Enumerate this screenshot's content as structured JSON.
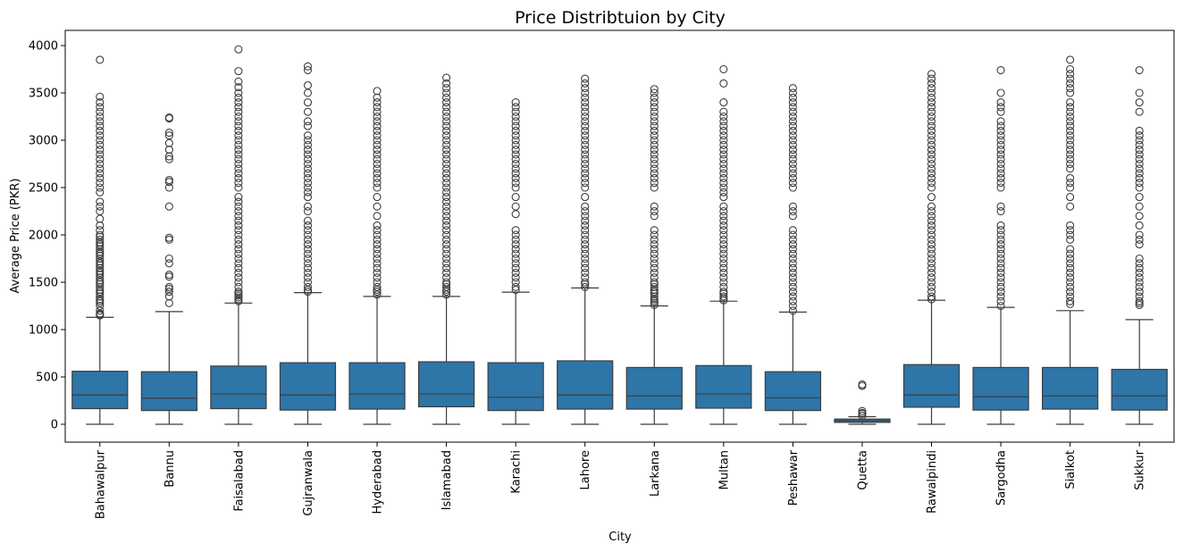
{
  "chart_data": {
    "type": "box",
    "title": "Price Distribtuion by City",
    "xlabel": "City",
    "ylabel": "Average Price (PKR)",
    "ylim": [
      -200,
      4160
    ],
    "yticks": [
      0,
      500,
      1000,
      1500,
      2000,
      2500,
      3000,
      3500,
      4000
    ],
    "grid": false,
    "box_color": "#2e75a8",
    "categories": [
      "Bahawalpur",
      "Bannu",
      "Faisalabad",
      "Gujranwala",
      "Hyderabad",
      "Islamabad",
      "Karachi",
      "Lahore",
      "Larkana",
      "Multan",
      "Peshawar",
      "Quetta",
      "Rawalpindi",
      "Sargodha",
      "Sialkot",
      "Sukkur"
    ],
    "boxes": [
      {
        "min": 0,
        "q1": 165,
        "median": 310,
        "q3": 560,
        "whisker_high": 1130,
        "outliers": [
          1150,
          1160,
          1170,
          1200,
          1250,
          1280,
          1300,
          1320,
          1350,
          1380,
          1400,
          1420,
          1450,
          1480,
          1500,
          1520,
          1550,
          1580,
          1600,
          1620,
          1650,
          1680,
          1700,
          1720,
          1750,
          1780,
          1800,
          1820,
          1850,
          1880,
          1900,
          1920,
          1950,
          1980,
          2000,
          2050,
          2100,
          2170,
          2250,
          2300,
          2350,
          2450,
          2500,
          2550,
          2600,
          2650,
          2700,
          2750,
          2800,
          2850,
          2900,
          2950,
          3000,
          3050,
          3100,
          3150,
          3200,
          3250,
          3300,
          3350,
          3400,
          3460,
          3850
        ]
      },
      {
        "min": 0,
        "q1": 145,
        "median": 275,
        "q3": 555,
        "whisker_high": 1190,
        "outliers": [
          1280,
          1350,
          1400,
          1430,
          1450,
          1560,
          1580,
          1700,
          1750,
          1950,
          1970,
          2300,
          2500,
          2560,
          2580,
          2800,
          2830,
          2900,
          2970,
          3050,
          3080,
          3230,
          3240
        ]
      },
      {
        "min": 0,
        "q1": 165,
        "median": 320,
        "q3": 615,
        "whisker_high": 1280,
        "outliers": [
          1300,
          1320,
          1340,
          1360,
          1380,
          1400,
          1450,
          1500,
          1550,
          1600,
          1650,
          1700,
          1750,
          1800,
          1850,
          1900,
          1950,
          2000,
          2050,
          2100,
          2150,
          2200,
          2250,
          2300,
          2350,
          2400,
          2500,
          2550,
          2600,
          2650,
          2700,
          2750,
          2800,
          2850,
          2900,
          2950,
          3000,
          3050,
          3100,
          3150,
          3200,
          3250,
          3300,
          3350,
          3400,
          3450,
          3500,
          3560,
          3620,
          3730,
          3960
        ]
      },
      {
        "min": 0,
        "q1": 150,
        "median": 310,
        "q3": 650,
        "whisker_high": 1390,
        "outliers": [
          1400,
          1420,
          1450,
          1500,
          1550,
          1600,
          1650,
          1700,
          1750,
          1800,
          1850,
          1900,
          1950,
          2000,
          2050,
          2100,
          2150,
          2250,
          2300,
          2400,
          2450,
          2500,
          2550,
          2600,
          2650,
          2700,
          2750,
          2800,
          2850,
          2900,
          2950,
          3000,
          3050,
          3150,
          3200,
          3300,
          3400,
          3500,
          3580,
          3740,
          3780
        ]
      },
      {
        "min": 0,
        "q1": 160,
        "median": 320,
        "q3": 650,
        "whisker_high": 1350,
        "outliers": [
          1370,
          1400,
          1420,
          1450,
          1500,
          1550,
          1600,
          1650,
          1700,
          1750,
          1800,
          1850,
          1900,
          1950,
          2000,
          2050,
          2100,
          2200,
          2300,
          2400,
          2500,
          2550,
          2600,
          2650,
          2700,
          2750,
          2800,
          2850,
          2900,
          2950,
          3000,
          3050,
          3100,
          3150,
          3200,
          3250,
          3300,
          3350,
          3400,
          3450,
          3520
        ]
      },
      {
        "min": 0,
        "q1": 185,
        "median": 320,
        "q3": 660,
        "whisker_high": 1350,
        "outliers": [
          1370,
          1400,
          1420,
          1450,
          1480,
          1500,
          1550,
          1600,
          1650,
          1700,
          1750,
          1800,
          1850,
          1900,
          1950,
          2000,
          2050,
          2100,
          2150,
          2200,
          2250,
          2300,
          2350,
          2400,
          2450,
          2500,
          2550,
          2600,
          2650,
          2700,
          2750,
          2800,
          2850,
          2900,
          2950,
          3000,
          3050,
          3100,
          3150,
          3200,
          3250,
          3300,
          3350,
          3400,
          3450,
          3500,
          3550,
          3600,
          3660
        ]
      },
      {
        "min": 0,
        "q1": 145,
        "median": 285,
        "q3": 650,
        "whisker_high": 1395,
        "outliers": [
          1420,
          1450,
          1500,
          1550,
          1600,
          1650,
          1700,
          1750,
          1800,
          1850,
          1900,
          1950,
          2000,
          2050,
          2220,
          2300,
          2400,
          2500,
          2550,
          2600,
          2650,
          2700,
          2750,
          2800,
          2850,
          2900,
          2950,
          3000,
          3050,
          3100,
          3150,
          3200,
          3250,
          3300,
          3350,
          3400
        ]
      },
      {
        "min": 0,
        "q1": 160,
        "median": 310,
        "q3": 670,
        "whisker_high": 1440,
        "outliers": [
          1450,
          1480,
          1500,
          1550,
          1600,
          1650,
          1700,
          1750,
          1800,
          1850,
          1900,
          1950,
          2000,
          2050,
          2100,
          2150,
          2200,
          2250,
          2300,
          2400,
          2500,
          2550,
          2600,
          2650,
          2700,
          2750,
          2800,
          2850,
          2900,
          2950,
          3000,
          3050,
          3100,
          3150,
          3200,
          3250,
          3300,
          3350,
          3400,
          3450,
          3500,
          3550,
          3600,
          3650
        ]
      },
      {
        "min": 0,
        "q1": 160,
        "median": 300,
        "q3": 600,
        "whisker_high": 1250,
        "outliers": [
          1260,
          1280,
          1300,
          1320,
          1350,
          1380,
          1400,
          1420,
          1450,
          1480,
          1500,
          1550,
          1600,
          1650,
          1700,
          1750,
          1800,
          1850,
          1900,
          1950,
          2000,
          2050,
          2200,
          2250,
          2300,
          2500,
          2550,
          2600,
          2650,
          2700,
          2750,
          2800,
          2850,
          2900,
          2950,
          3000,
          3050,
          3100,
          3150,
          3200,
          3250,
          3300,
          3350,
          3400,
          3450,
          3500,
          3540
        ]
      },
      {
        "min": 0,
        "q1": 170,
        "median": 320,
        "q3": 620,
        "whisker_high": 1300,
        "outliers": [
          1310,
          1330,
          1350,
          1380,
          1400,
          1450,
          1500,
          1550,
          1600,
          1650,
          1700,
          1750,
          1800,
          1850,
          1900,
          1950,
          2000,
          2050,
          2100,
          2150,
          2200,
          2250,
          2300,
          2400,
          2450,
          2500,
          2550,
          2600,
          2650,
          2700,
          2750,
          2800,
          2850,
          2900,
          2950,
          3000,
          3050,
          3100,
          3150,
          3200,
          3250,
          3300,
          3400,
          3600,
          3750
        ]
      },
      {
        "min": 0,
        "q1": 145,
        "median": 280,
        "q3": 555,
        "whisker_high": 1185,
        "outliers": [
          1200,
          1250,
          1300,
          1350,
          1400,
          1450,
          1500,
          1550,
          1600,
          1650,
          1700,
          1750,
          1800,
          1850,
          1900,
          1950,
          2000,
          2050,
          2200,
          2250,
          2300,
          2500,
          2550,
          2600,
          2650,
          2700,
          2750,
          2800,
          2850,
          2900,
          2950,
          3000,
          3050,
          3100,
          3150,
          3200,
          3250,
          3300,
          3350,
          3400,
          3450,
          3500,
          3550
        ]
      },
      {
        "min": 0,
        "q1": 20,
        "median": 38,
        "q3": 55,
        "whisker_high": 80,
        "outliers": [
          90,
          110,
          120,
          140,
          405,
          420
        ]
      },
      {
        "min": 0,
        "q1": 180,
        "median": 310,
        "q3": 630,
        "whisker_high": 1310,
        "outliers": [
          1320,
          1350,
          1400,
          1450,
          1500,
          1550,
          1600,
          1650,
          1700,
          1750,
          1800,
          1850,
          1900,
          1950,
          2000,
          2050,
          2100,
          2150,
          2200,
          2250,
          2300,
          2400,
          2500,
          2550,
          2600,
          2650,
          2700,
          2750,
          2800,
          2850,
          2900,
          2950,
          3000,
          3050,
          3100,
          3150,
          3200,
          3250,
          3300,
          3350,
          3400,
          3450,
          3500,
          3550,
          3600,
          3650,
          3700
        ]
      },
      {
        "min": 0,
        "q1": 150,
        "median": 290,
        "q3": 600,
        "whisker_high": 1235,
        "outliers": [
          1250,
          1300,
          1350,
          1400,
          1450,
          1500,
          1550,
          1600,
          1650,
          1700,
          1750,
          1800,
          1850,
          1900,
          1950,
          2000,
          2050,
          2100,
          2250,
          2300,
          2500,
          2550,
          2600,
          2650,
          2700,
          2750,
          2800,
          2850,
          2900,
          2950,
          3000,
          3050,
          3100,
          3150,
          3200,
          3300,
          3350,
          3400,
          3500,
          3740
        ]
      },
      {
        "min": 0,
        "q1": 160,
        "median": 300,
        "q3": 600,
        "whisker_high": 1200,
        "outliers": [
          1270,
          1300,
          1350,
          1400,
          1450,
          1500,
          1550,
          1600,
          1650,
          1700,
          1750,
          1800,
          1850,
          1950,
          2000,
          2050,
          2100,
          2300,
          2400,
          2500,
          2550,
          2600,
          2700,
          2750,
          2800,
          2850,
          2900,
          2950,
          3000,
          3050,
          3100,
          3150,
          3200,
          3250,
          3300,
          3350,
          3400,
          3500,
          3550,
          3600,
          3650,
          3700,
          3750,
          3850
        ]
      },
      {
        "min": 0,
        "q1": 150,
        "median": 300,
        "q3": 580,
        "whisker_high": 1105,
        "outliers": [
          1260,
          1280,
          1300,
          1350,
          1400,
          1450,
          1500,
          1550,
          1600,
          1650,
          1700,
          1750,
          1900,
          1950,
          2000,
          2100,
          2200,
          2300,
          2400,
          2500,
          2550,
          2600,
          2650,
          2700,
          2750,
          2800,
          2850,
          2900,
          2950,
          3000,
          3050,
          3100,
          3300,
          3400,
          3500,
          3740
        ]
      }
    ]
  }
}
